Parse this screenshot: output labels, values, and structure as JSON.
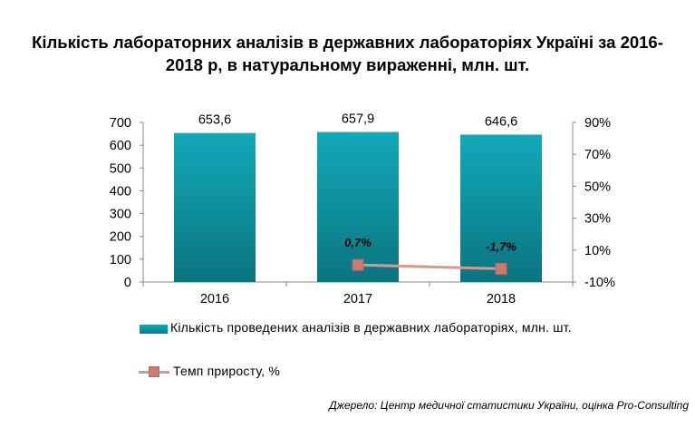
{
  "title_line1": "Кількість лабораторних аналізів в державних лабораторіях Україні за 2016-",
  "title_line2": "2018 р, в натуральному вираженні, млн. шт.",
  "legend": {
    "bar_label": "Кількість проведених аналізів в державних лабораторіях, млн. шт.",
    "line_label": "Темп приросту, %"
  },
  "source": "Джерело: Центр медичної статистики України, оцінка Pro-Consulting",
  "colors": {
    "bar": "#0e8e99",
    "line": "#d49a92",
    "marker": "#c97c70"
  },
  "chart_data": {
    "type": "bar+line",
    "categories": [
      "2016",
      "2017",
      "2018"
    ],
    "series": [
      {
        "name": "Кількість проведених аналізів в державних лабораторіях, млн. шт.",
        "type": "bar",
        "axis": "left",
        "values": [
          653.6,
          657.9,
          646.6
        ],
        "labels": [
          "653,6",
          "657,9",
          "646,6"
        ]
      },
      {
        "name": "Темп приросту, %",
        "type": "line",
        "axis": "right",
        "points": [
          {
            "x": "2017",
            "y": 0.7
          },
          {
            "x": "2018",
            "y": -1.7
          }
        ],
        "labels": [
          "0,7%",
          "-1,7%"
        ]
      }
    ],
    "y_left": {
      "min": 0,
      "max": 700,
      "ticks": [
        "0",
        "100",
        "200",
        "300",
        "400",
        "500",
        "600",
        "700"
      ]
    },
    "y_right": {
      "min": -10,
      "max": 90,
      "ticks": [
        "-10%",
        "10%",
        "30%",
        "50%",
        "70%",
        "90%"
      ]
    },
    "grid": false
  }
}
